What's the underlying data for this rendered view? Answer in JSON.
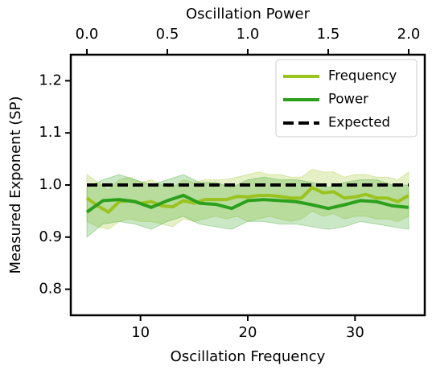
{
  "chart_data": {
    "type": "line",
    "xlabel": "Oscillation Frequency",
    "x2label": "Oscillation Power",
    "ylabel": "Measured Exponent (SP)",
    "xlim": [
      3.5,
      36.5
    ],
    "xticks": [
      10,
      20,
      30
    ],
    "x2lim": [
      -0.1,
      2.1
    ],
    "x2ticks": [
      {
        "value": 0,
        "label": "0.0"
      },
      0.5,
      {
        "value": 1,
        "label": "1.0"
      },
      1.5,
      {
        "value": 2,
        "label": "2.0"
      }
    ],
    "ylim": [
      0.75,
      1.25
    ],
    "yticks": [
      0.8,
      0.9,
      {
        "value": 1,
        "label": "1.0"
      },
      1.1,
      1.2
    ],
    "legend": "upper right",
    "series": [
      {
        "name": "Frequency",
        "color": "#9bc31f",
        "axis": "x",
        "x": [
          5,
          6,
          7,
          8,
          9,
          10,
          11,
          12,
          13,
          14,
          15,
          16,
          17,
          18,
          19,
          20,
          21,
          22,
          23,
          24,
          25,
          26,
          27,
          28,
          29,
          30,
          31,
          32,
          33,
          34,
          35
        ],
        "values": [
          0.975,
          0.96,
          0.948,
          0.968,
          0.97,
          0.965,
          0.968,
          0.96,
          0.958,
          0.97,
          0.965,
          0.972,
          0.972,
          0.972,
          0.978,
          0.977,
          0.98,
          0.98,
          0.978,
          0.975,
          0.975,
          0.995,
          0.985,
          0.987,
          0.975,
          0.977,
          0.982,
          0.975,
          0.975,
          0.968,
          0.98
        ],
        "lower": [
          0.93,
          0.92,
          0.915,
          0.93,
          0.935,
          0.93,
          0.93,
          0.925,
          0.92,
          0.935,
          0.93,
          0.935,
          0.94,
          0.935,
          0.94,
          0.93,
          0.935,
          0.94,
          0.935,
          0.93,
          0.935,
          0.95,
          0.94,
          0.945,
          0.935,
          0.94,
          0.94,
          0.935,
          0.935,
          0.93,
          0.94
        ],
        "upper": [
          1.02,
          1.005,
          0.99,
          1.01,
          1.015,
          1.005,
          1.01,
          1.0,
          0.995,
          1.01,
          1.005,
          1.01,
          1.01,
          1.01,
          1.015,
          1.02,
          1.025,
          1.02,
          1.02,
          1.015,
          1.015,
          1.03,
          1.025,
          1.025,
          1.015,
          1.02,
          1.02,
          1.015,
          1.015,
          1.01,
          1.025
        ]
      },
      {
        "name": "Power",
        "color": "#2ca01c",
        "axis": "x2",
        "x": [
          0,
          0.1,
          0.2,
          0.3,
          0.4,
          0.5,
          0.6,
          0.7,
          0.8,
          0.9,
          1,
          1.1,
          1.2,
          1.3,
          1.4,
          1.5,
          1.6,
          1.7,
          1.8,
          1.9,
          2
        ],
        "values": [
          0.948,
          0.97,
          0.972,
          0.968,
          0.957,
          0.97,
          0.98,
          0.965,
          0.963,
          0.955,
          0.97,
          0.972,
          0.97,
          0.968,
          0.962,
          0.955,
          0.962,
          0.97,
          0.968,
          0.96,
          0.957
        ],
        "lower": [
          0.9,
          0.925,
          0.93,
          0.925,
          0.915,
          0.93,
          0.94,
          0.925,
          0.92,
          0.915,
          0.93,
          0.93,
          0.925,
          0.925,
          0.92,
          0.915,
          0.92,
          0.93,
          0.925,
          0.92,
          0.915
        ],
        "upper": [
          0.995,
          1.01,
          1.02,
          1.01,
          1.0,
          1.01,
          1.02,
          1.005,
          1.005,
          0.995,
          1.01,
          1.015,
          1.01,
          1.01,
          1.005,
          0.995,
          1.005,
          1.01,
          1.01,
          1.0,
          1.0
        ]
      },
      {
        "name": "Expected",
        "color": "#000000",
        "axis": "x",
        "dashed": true,
        "x": [
          5,
          35
        ],
        "values": [
          1,
          1
        ]
      }
    ]
  }
}
